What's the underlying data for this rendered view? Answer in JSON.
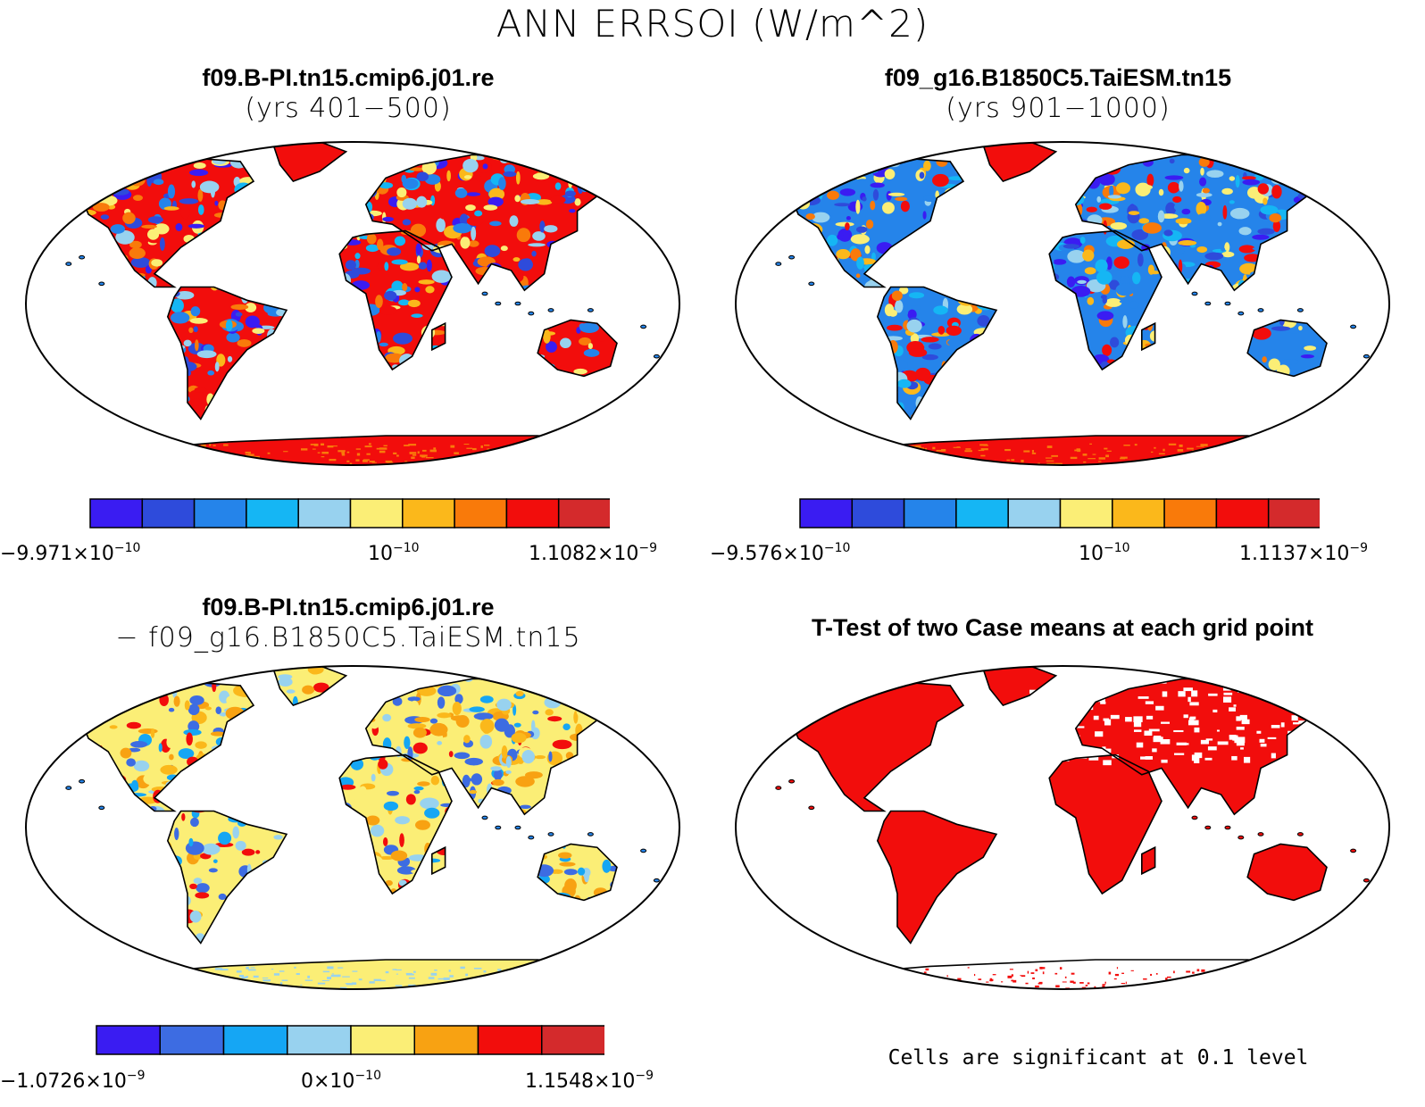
{
  "title": "ANN ERRSOI (W/m^2)",
  "panels": [
    {
      "title": "f09.B-PI.tn15.cmip6.j01.re",
      "subtitle": "(yrs 401−500)",
      "colorbar": {
        "colors": [
          "#3a1cf2",
          "#2e4bdb",
          "#2584ea",
          "#15b6f4",
          "#98d2ef",
          "#fbee76",
          "#fbb81b",
          "#f97a0a",
          "#f20d0c",
          "#d42a2c"
        ],
        "label_min": "−9.971×10",
        "label_min_exp": "−10",
        "label_mid": "10",
        "label_mid_exp": "−10",
        "label_max": "1.1082×10",
        "label_max_exp": "−9"
      }
    },
    {
      "title": "f09_g16.B1850C5.TaiESM.tn15",
      "subtitle": "(yrs 901−1000)",
      "colorbar": {
        "colors": [
          "#3a1cf2",
          "#2e4bdb",
          "#2584ea",
          "#15b6f4",
          "#98d2ef",
          "#fbee76",
          "#fbb81b",
          "#f97a0a",
          "#f20d0c",
          "#d42a2c"
        ],
        "label_min": "−9.576×10",
        "label_min_exp": "−10",
        "label_mid": "10",
        "label_mid_exp": "−10",
        "label_max": "1.1137×10",
        "label_max_exp": "−9"
      }
    },
    {
      "title": "f09.B-PI.tn15.cmip6.j01.re",
      "subtitle": "− f09_g16.B1850C5.TaiESM.tn15",
      "colorbar": {
        "colors": [
          "#3a1cf2",
          "#3d6ce2",
          "#15a6f4",
          "#98d2ef",
          "#fbee76",
          "#f8a212",
          "#f20d0c",
          "#d42a2c"
        ],
        "label_min": "−1.0726×10",
        "label_min_exp": "−9",
        "label_mid": "0×10",
        "label_mid_exp": "−10",
        "label_max": "1.1548×10",
        "label_max_exp": "−9"
      }
    },
    {
      "title": "T-Test of two Case means at each grid point",
      "footer": "Cells are significant at 0.1 level"
    }
  ],
  "map_palettes": {
    "p1": [
      "#f20d0c",
      "#2584ea",
      "#15b6f4",
      "#fbb81b",
      "#f97a0a",
      "#98d2ef",
      "#2e4bdb",
      "#3a1cf2",
      "#fbee76"
    ],
    "p2": [
      "#2584ea",
      "#15b6f4",
      "#98d2ef",
      "#fbb81b",
      "#f97a0a",
      "#3a1cf2",
      "#2e4bdb",
      "#f20d0c",
      "#fbee76"
    ],
    "p3": [
      "#fbee76",
      "#98d2ef",
      "#fbb81b",
      "#15a6f4",
      "#3d6ce2",
      "#f20d0c",
      "#f8a212"
    ],
    "p4": [
      "#f20d0c"
    ]
  }
}
